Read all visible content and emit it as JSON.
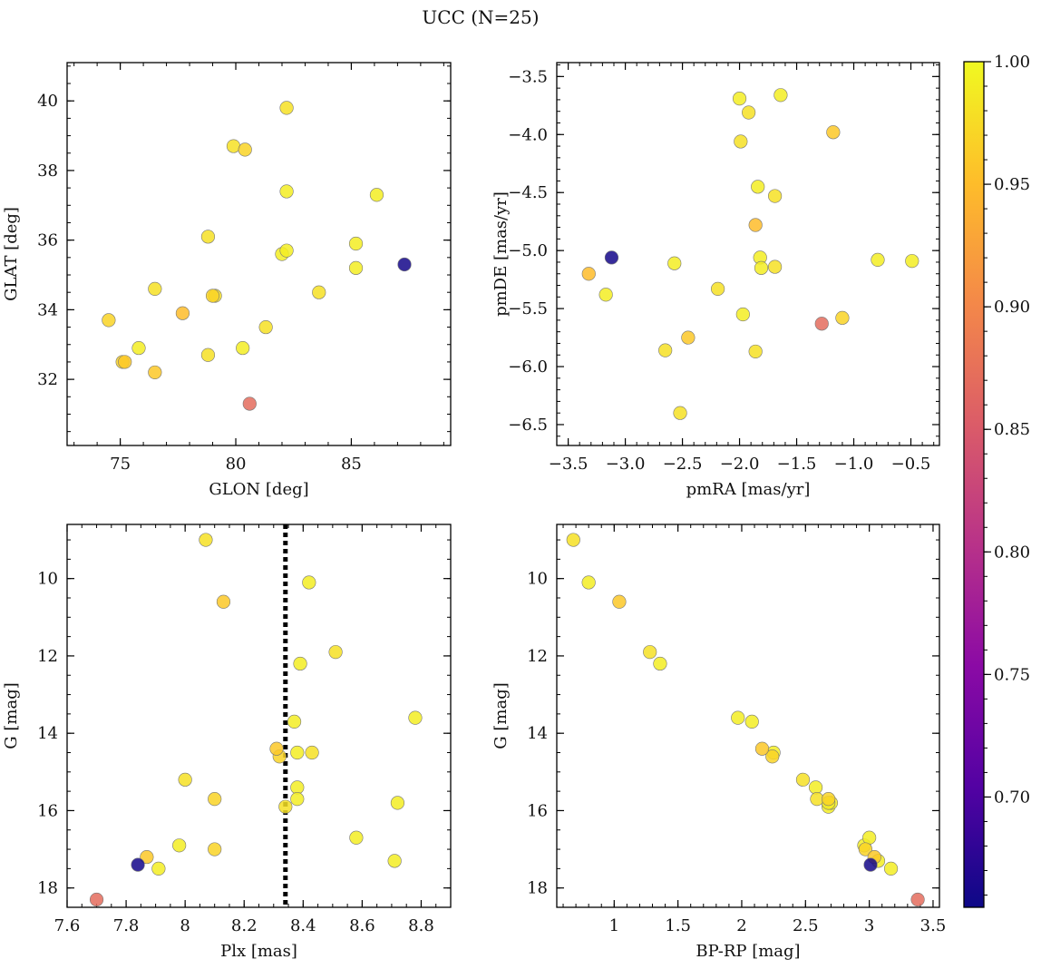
{
  "figure": {
    "title": "UCC (N=25)"
  },
  "chart_data": [
    {
      "type": "scatter",
      "id": "radec",
      "xlabel": "GLON [deg]",
      "ylabel": "GLAT [deg]",
      "xlim": [
        72.7,
        89.3
      ],
      "ylim": [
        30.1,
        41.1
      ],
      "x_ticks": [
        75,
        80,
        85
      ],
      "y_ticks": [
        32,
        34,
        36,
        38,
        40
      ],
      "x_minor_step": 1,
      "y_minor_step": 0.5,
      "x": [
        74.5,
        75.8,
        75.2,
        76.5,
        76.5,
        77.7,
        78.8,
        78.8,
        79.0,
        79.1,
        79.9,
        80.4,
        80.3,
        80.6,
        81.3,
        82.0,
        82.2,
        82.2,
        82.2,
        83.6,
        85.2,
        85.2,
        86.1,
        87.3,
        75.1
      ],
      "y": [
        33.7,
        32.9,
        32.5,
        34.6,
        32.2,
        33.9,
        36.1,
        32.7,
        34.4,
        34.4,
        38.7,
        38.6,
        32.9,
        31.3,
        33.5,
        35.6,
        35.7,
        37.4,
        39.8,
        34.5,
        35.9,
        35.2,
        37.3,
        35.3,
        32.5
      ],
      "c": [
        0.97,
        0.99,
        0.96,
        0.98,
        0.96,
        0.95,
        0.98,
        0.98,
        0.97,
        0.98,
        0.98,
        0.97,
        0.99,
        0.87,
        0.98,
        0.99,
        0.99,
        0.99,
        0.98,
        0.98,
        0.99,
        0.99,
        0.99,
        0.66,
        0.97
      ]
    },
    {
      "type": "scatter",
      "id": "pm",
      "xlabel": "pmRA [mas/yr]",
      "ylabel": "pmDE [mas/yr]",
      "xlim": [
        -3.6,
        -0.25
      ],
      "ylim": [
        -6.68,
        -3.38
      ],
      "x_ticks": [
        -3.5,
        -3.0,
        -2.5,
        -2.0,
        -1.5,
        -1.0,
        -0.5
      ],
      "x_tick_labels": [
        "−3.5",
        "−3.0",
        "−2.5",
        "−2.0",
        "−1.5",
        "−1.0",
        "−0.5"
      ],
      "y_ticks": [
        -6.5,
        -6.0,
        -5.5,
        -5.0,
        -4.5,
        -4.0,
        -3.5
      ],
      "y_tick_labels": [
        "−6.5",
        "−6.0",
        "−5.5",
        "−5.0",
        "−4.5",
        "−4.0",
        "−3.5"
      ],
      "x_minor_step": 0.1,
      "y_minor_step": 0.1,
      "x": [
        -3.32,
        -3.17,
        -3.12,
        -2.65,
        -2.57,
        -2.52,
        -2.45,
        -2.19,
        -2.0,
        -1.99,
        -1.97,
        -1.92,
        -1.86,
        -1.86,
        -1.84,
        -1.82,
        -1.81,
        -1.69,
        -1.69,
        -1.64,
        -1.28,
        -1.18,
        -1.1,
        -0.79,
        -0.49
      ],
      "y": [
        -5.2,
        -5.38,
        -5.06,
        -5.86,
        -5.11,
        -6.4,
        -5.75,
        -5.33,
        -3.69,
        -4.06,
        -5.55,
        -3.81,
        -4.78,
        -5.87,
        -4.45,
        -5.06,
        -5.15,
        -4.53,
        -5.14,
        -3.66,
        -5.63,
        -3.98,
        -5.58,
        -5.08,
        -5.09
      ],
      "c": [
        0.95,
        0.99,
        0.66,
        0.98,
        0.99,
        0.98,
        0.96,
        0.98,
        0.99,
        0.98,
        0.99,
        0.98,
        0.95,
        0.98,
        0.99,
        0.99,
        0.99,
        0.98,
        0.98,
        0.99,
        0.87,
        0.96,
        0.97,
        0.99,
        0.99
      ]
    },
    {
      "type": "scatter",
      "id": "plx",
      "xlabel": "Plx [mas]",
      "ylabel": "G [mag]",
      "xlim": [
        7.6,
        8.9
      ],
      "ylim": [
        18.5,
        8.6
      ],
      "x_ticks": [
        7.6,
        7.8,
        8.0,
        8.2,
        8.4,
        8.6,
        8.8
      ],
      "y_ticks": [
        10,
        12,
        14,
        16,
        18
      ],
      "x_minor_step": 0.05,
      "y_minor_step": 0.5,
      "vline": {
        "x": 8.34,
        "style": "dotted"
      },
      "x": [
        8.07,
        8.42,
        8.13,
        8.51,
        8.39,
        8.37,
        8.78,
        8.31,
        8.32,
        8.38,
        8.43,
        8.0,
        8.38,
        8.38,
        8.1,
        8.72,
        8.34,
        8.58,
        8.1,
        7.98,
        7.87,
        8.71,
        7.84,
        7.91,
        7.7
      ],
      "y": [
        9.0,
        10.1,
        10.6,
        11.9,
        12.2,
        13.7,
        13.6,
        14.4,
        14.6,
        14.5,
        14.5,
        15.2,
        15.4,
        15.7,
        15.7,
        15.8,
        15.9,
        16.7,
        17.0,
        16.9,
        17.2,
        17.3,
        17.4,
        17.5,
        18.3
      ],
      "c": [
        0.98,
        0.99,
        0.96,
        0.98,
        0.99,
        0.99,
        0.99,
        0.96,
        0.97,
        0.99,
        0.98,
        0.98,
        0.99,
        0.99,
        0.97,
        0.99,
        0.98,
        0.99,
        0.97,
        0.99,
        0.96,
        0.99,
        0.66,
        0.99,
        0.87
      ]
    },
    {
      "type": "scatter",
      "id": "cmd",
      "xlabel": "BP-RP [mag]",
      "ylabel": "G [mag]",
      "xlim": [
        0.55,
        3.55
      ],
      "ylim": [
        18.5,
        8.6
      ],
      "x_ticks": [
        1.0,
        1.5,
        2.0,
        2.5,
        3.0,
        3.5
      ],
      "y_ticks": [
        10,
        12,
        14,
        16,
        18
      ],
      "x_minor_step": 0.1,
      "y_minor_step": 0.5,
      "x": [
        0.68,
        0.8,
        1.04,
        1.28,
        1.36,
        1.97,
        2.08,
        2.16,
        2.24,
        2.25,
        2.48,
        2.58,
        2.59,
        2.68,
        2.68,
        2.7,
        2.96,
        2.97,
        3.0,
        3.04,
        3.07,
        3.17,
        3.01,
        3.38,
        2.68
      ],
      "y": [
        9.0,
        10.1,
        10.6,
        11.9,
        12.2,
        13.6,
        13.7,
        14.4,
        14.6,
        14.5,
        15.2,
        15.4,
        15.7,
        15.7,
        15.9,
        15.8,
        16.9,
        17.0,
        16.7,
        17.2,
        17.3,
        17.5,
        17.4,
        18.3,
        15.8
      ],
      "c": [
        0.98,
        0.99,
        0.96,
        0.98,
        0.99,
        0.99,
        0.99,
        0.96,
        0.97,
        0.99,
        0.98,
        0.99,
        0.98,
        0.97,
        0.99,
        0.99,
        0.99,
        0.97,
        0.99,
        0.96,
        0.99,
        0.99,
        0.66,
        0.87,
        0.99
      ]
    }
  ],
  "colorbar": {
    "min": 0.655,
    "max": 1.0,
    "ticks": [
      0.7,
      0.75,
      0.8,
      0.85,
      0.9,
      0.95,
      1.0
    ],
    "tick_labels": [
      "0.70",
      "0.75",
      "0.80",
      "0.85",
      "0.90",
      "0.95",
      "1.00"
    ],
    "colormap": "plasma",
    "colors": [
      "#0d0887",
      "#5302a3",
      "#8b0aa5",
      "#b83289",
      "#db5c68",
      "#f48849",
      "#febd2a",
      "#f0f921"
    ]
  }
}
